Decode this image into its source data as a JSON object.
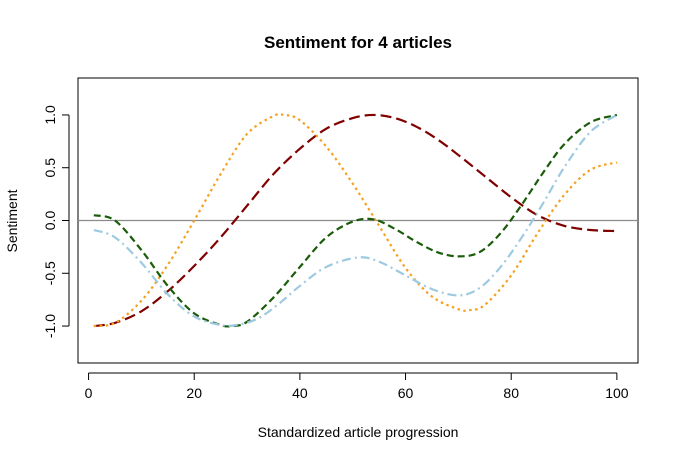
{
  "chart_data": {
    "type": "line",
    "title": "Sentiment for 4 articles",
    "xlabel": "Standardized article progression",
    "ylabel": "Sentiment",
    "xlim": [
      -2,
      104
    ],
    "ylim": [
      -1.35,
      1.35
    ],
    "xticks": [
      0,
      20,
      40,
      60,
      80,
      100
    ],
    "yticks": [
      -1.0,
      -0.5,
      0.0,
      0.5,
      1.0
    ],
    "xtick_labels": [
      "0",
      "20",
      "40",
      "60",
      "80",
      "100"
    ],
    "ytick_labels": [
      "-1.0",
      "-0.5",
      "0.0",
      "0.5",
      "1.0"
    ],
    "reference_line": {
      "y": 0,
      "color": "#8c8c8c"
    },
    "grid": false,
    "legend": "none",
    "series": [
      {
        "color": "#800000",
        "dash": "long-dash",
        "x": [
          1,
          5,
          10,
          15,
          20,
          25,
          30,
          35,
          40,
          45,
          50,
          54,
          58,
          62,
          66,
          70,
          75,
          80,
          85,
          90,
          95,
          100
        ],
        "y": [
          -1.0,
          -0.97,
          -0.86,
          -0.67,
          -0.43,
          -0.16,
          0.14,
          0.44,
          0.68,
          0.87,
          0.97,
          1.0,
          0.97,
          0.89,
          0.77,
          0.62,
          0.42,
          0.22,
          0.05,
          -0.05,
          -0.09,
          -0.1
        ]
      },
      {
        "color": "#f5a020",
        "dash": "dotted",
        "x": [
          1,
          5,
          10,
          15,
          20,
          25,
          30,
          35,
          37,
          40,
          45,
          50,
          55,
          60,
          65,
          70,
          72,
          75,
          80,
          85,
          90,
          95,
          100
        ],
        "y": [
          -1.0,
          -0.97,
          -0.76,
          -0.42,
          0.0,
          0.44,
          0.82,
          0.99,
          1.0,
          0.95,
          0.7,
          0.35,
          -0.05,
          -0.45,
          -0.72,
          -0.84,
          -0.85,
          -0.8,
          -0.52,
          -0.12,
          0.24,
          0.48,
          0.55
        ]
      },
      {
        "color": "#1a5c0a",
        "dash": "dashed",
        "x": [
          1,
          5,
          10,
          15,
          20,
          25,
          27,
          30,
          35,
          40,
          45,
          50,
          54,
          58,
          62,
          66,
          70,
          74,
          78,
          82,
          86,
          90,
          95,
          100
        ],
        "y": [
          0.05,
          0.0,
          -0.28,
          -0.62,
          -0.88,
          -0.99,
          -1.0,
          -0.96,
          -0.73,
          -0.44,
          -0.16,
          -0.01,
          0.01,
          -0.08,
          -0.2,
          -0.3,
          -0.34,
          -0.3,
          -0.12,
          0.15,
          0.45,
          0.72,
          0.93,
          1.0
        ]
      },
      {
        "color": "#9ecae1",
        "dash": "dash-dot",
        "x": [
          1,
          5,
          10,
          15,
          20,
          25,
          28,
          32,
          36,
          40,
          45,
          51,
          55,
          60,
          65,
          70,
          74,
          78,
          82,
          86,
          90,
          95,
          100
        ],
        "y": [
          -0.09,
          -0.16,
          -0.4,
          -0.7,
          -0.91,
          -0.99,
          -0.99,
          -0.93,
          -0.79,
          -0.62,
          -0.44,
          -0.35,
          -0.39,
          -0.52,
          -0.65,
          -0.71,
          -0.64,
          -0.44,
          -0.16,
          0.16,
          0.5,
          0.84,
          1.0
        ]
      }
    ]
  }
}
